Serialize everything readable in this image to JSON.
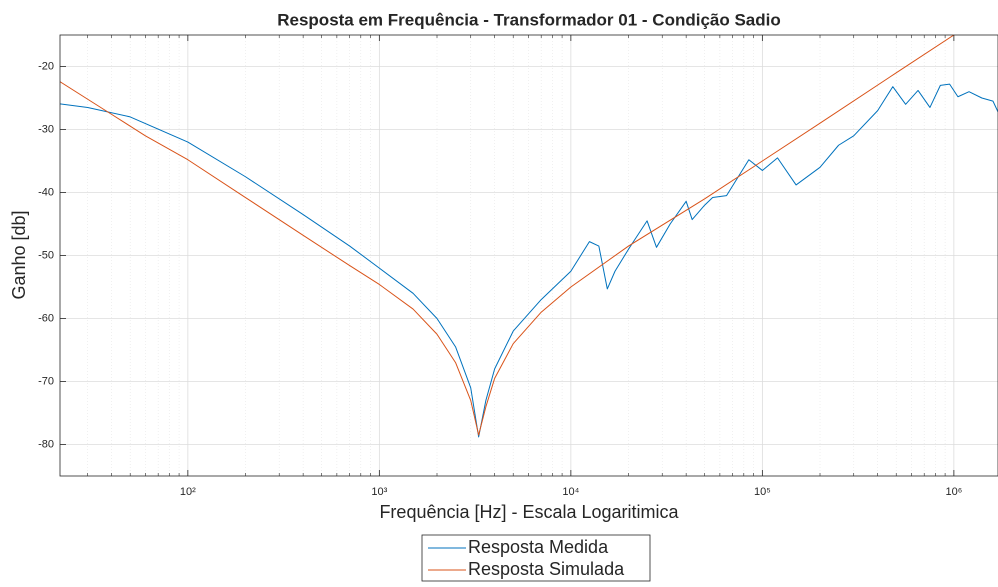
{
  "chart_data": {
    "type": "line",
    "title": "Resposta em Frequência - Transformador 01 - Condição Sadio",
    "xlabel": "Frequência [Hz] - Escala Logaritimica",
    "ylabel": "Ganho [db]",
    "xscale": "log",
    "grid": true,
    "minor_grid": true,
    "legend": "southoutside",
    "xlim": [
      21.5,
      1700000
    ],
    "ylim": [
      -85,
      -15
    ],
    "xticks": [
      {
        "value": 100,
        "label": "10²"
      },
      {
        "value": 1000,
        "label": "10³"
      },
      {
        "value": 10000,
        "label": "10⁴"
      },
      {
        "value": 100000,
        "label": "10⁵"
      },
      {
        "value": 1000000,
        "label": "10⁶"
      }
    ],
    "yticks": [
      -80,
      -70,
      -60,
      -50,
      -40,
      -30,
      -20
    ],
    "series": [
      {
        "name": "Resposta Medida",
        "color": "#0072bd",
        "x": [
          20,
          30,
          50,
          100,
          200,
          400,
          700,
          1000,
          1500,
          2000,
          2500,
          3000,
          3300,
          3600,
          4000,
          5000,
          7000,
          10000,
          12500,
          14000,
          15500,
          17000,
          20000,
          25000,
          28000,
          33000,
          40000,
          43000,
          50000,
          55000,
          65000,
          85000,
          100000,
          120000,
          150000,
          200000,
          250000,
          300000,
          400000,
          480000,
          560000,
          650000,
          750000,
          850000,
          950000,
          1050000,
          1200000,
          1400000,
          1600000,
          1700000
        ],
        "values": [
          -25.8,
          -26.5,
          -28,
          -32,
          -37.5,
          -43.5,
          -48.5,
          -52,
          -56,
          -60,
          -64.5,
          -71,
          -78.8,
          -73,
          -68,
          -62,
          -57,
          -52.5,
          -47.8,
          -48.5,
          -55.3,
          -52.5,
          -49,
          -44.5,
          -48.7,
          -45,
          -41.4,
          -44.3,
          -42,
          -40.8,
          -40.5,
          -34.8,
          -36.5,
          -34.5,
          -38.8,
          -36,
          -32.5,
          -31,
          -27,
          -23.2,
          -26,
          -23.8,
          -26.5,
          -23,
          -22.8,
          -24.8,
          -24,
          -25,
          -25.5,
          -27.2
        ]
      },
      {
        "name": "Resposta Simulada",
        "color": "#d95319",
        "x": [
          20,
          30,
          40,
          60,
          100,
          200,
          400,
          700,
          1000,
          1500,
          2000,
          2500,
          3000,
          3300,
          3600,
          4000,
          5000,
          7000,
          10000,
          20000,
          50000,
          100000,
          200000,
          500000,
          1000000,
          1700000
        ],
        "values": [
          -21.8,
          -25.2,
          -27.6,
          -31,
          -34.8,
          -40.8,
          -46.8,
          -51.6,
          -54.6,
          -58.5,
          -62.5,
          -67,
          -73,
          -78.5,
          -74,
          -69.5,
          -64,
          -59,
          -55,
          -48.5,
          -41,
          -35,
          -29,
          -21,
          -15,
          -10.5
        ]
      }
    ]
  }
}
